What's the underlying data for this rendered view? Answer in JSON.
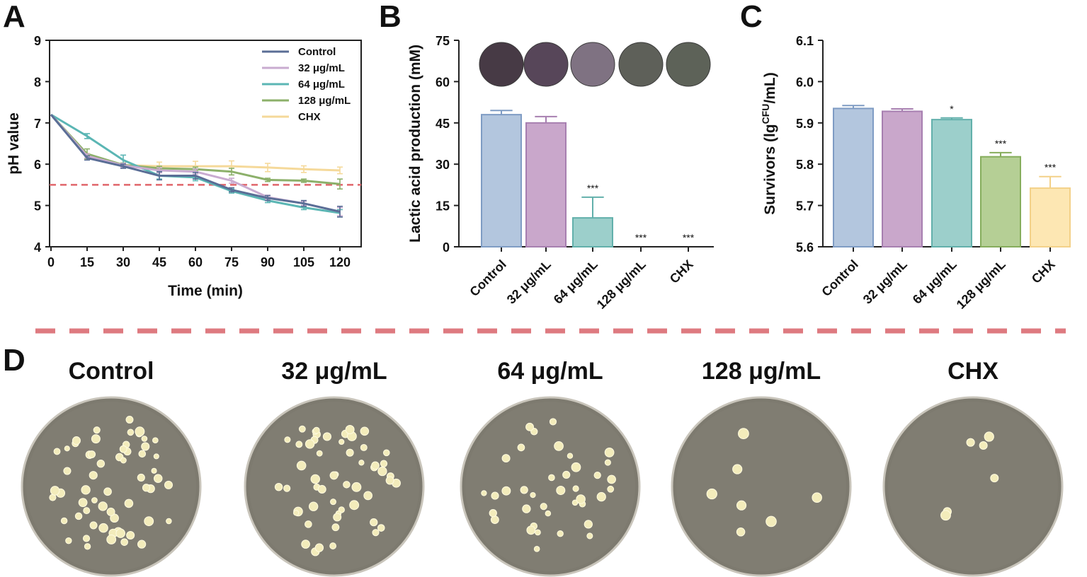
{
  "panels": {
    "a": "A",
    "b": "B",
    "c": "C",
    "d": "D"
  },
  "chart_data": [
    {
      "type": "line",
      "panel": "A",
      "xlabel": "Time (min)",
      "ylabel": "pH value",
      "x": [
        0,
        15,
        30,
        45,
        60,
        75,
        90,
        105,
        120
      ],
      "xticks": [
        "0",
        "15",
        "30",
        "45",
        "60",
        "75",
        "90",
        "105",
        "120"
      ],
      "ylim": [
        4,
        9
      ],
      "yticks": [
        "4",
        "5",
        "6",
        "7",
        "8",
        "9"
      ],
      "threshold": 5.5,
      "legend_position": "top-right",
      "series": [
        {
          "name": "Control",
          "color": "#5a6e96",
          "values": [
            7.2,
            6.15,
            5.95,
            5.72,
            5.72,
            5.38,
            5.18,
            5.05,
            4.85
          ],
          "errors": [
            0,
            0.05,
            0.05,
            0.1,
            0.08,
            0.05,
            0.06,
            0.07,
            0.13
          ]
        },
        {
          "name": "32 μg/mL",
          "color": "#c9abd0",
          "values": [
            7.2,
            6.2,
            5.97,
            5.85,
            5.82,
            5.6,
            5.2,
            5.05,
            4.85
          ],
          "errors": [
            0,
            0.05,
            0.05,
            0.06,
            0.06,
            0.06,
            0.05,
            0.05,
            0.1
          ]
        },
        {
          "name": "64 μg/mL",
          "color": "#5bb6b4",
          "values": [
            7.2,
            6.68,
            6.1,
            5.72,
            5.68,
            5.35,
            5.12,
            4.95,
            4.82
          ],
          "errors": [
            0,
            0.06,
            0.12,
            0.08,
            0.08,
            0.05,
            0.05,
            0.05,
            0.08
          ]
        },
        {
          "name": "128 μg/mL",
          "color": "#8cb06a",
          "values": [
            7.2,
            6.25,
            5.98,
            5.9,
            5.88,
            5.82,
            5.62,
            5.6,
            5.52
          ],
          "errors": [
            0,
            0.12,
            0.05,
            0.05,
            0.05,
            0.08,
            0.04,
            0.04,
            0.12
          ]
        },
        {
          "name": "CHX",
          "color": "#f5d99a",
          "values": [
            7.2,
            6.2,
            5.98,
            5.95,
            5.95,
            5.95,
            5.92,
            5.88,
            5.85
          ],
          "errors": [
            0,
            0.06,
            0.05,
            0.1,
            0.12,
            0.13,
            0.1,
            0.08,
            0.08
          ]
        }
      ]
    },
    {
      "type": "bar",
      "panel": "B",
      "ylabel": "Lactic acid production (mM)",
      "categories": [
        "Control",
        "32 μg/mL",
        "64 μg/mL",
        "128 μg/mL",
        "CHX"
      ],
      "values": [
        48,
        45,
        10.5,
        0,
        0
      ],
      "errors": [
        1.5,
        2.3,
        7.5,
        0,
        0
      ],
      "significance": [
        "",
        "",
        "***",
        "***",
        "***"
      ],
      "ylim": [
        0,
        75
      ],
      "yticks": [
        "0",
        "15",
        "30",
        "45",
        "60",
        "75"
      ],
      "colors": [
        "#b3c6de",
        "#c9a7cb",
        "#9ccfcb",
        "#cfd6c2",
        "#f5e2b8"
      ],
      "edge_colors": [
        "#7f9cc4",
        "#a77fb0",
        "#62b0ab",
        "#9bb27a",
        "#f0cd7d"
      ],
      "swatch_colors": [
        "#473a45",
        "#574659",
        "#7f7282",
        "#5e6059",
        "#5d6258"
      ]
    },
    {
      "type": "bar",
      "panel": "C",
      "ylabel": "Survivors (lg",
      "ylabel_sup": "CFU",
      "ylabel_end": "/mL)",
      "categories": [
        "Control",
        "32 μg/mL",
        "64 μg/mL",
        "128 μg/mL",
        "CHX"
      ],
      "values": [
        5.935,
        5.928,
        5.908,
        5.818,
        5.742
      ],
      "errors": [
        0.007,
        0.006,
        0.004,
        0.01,
        0.028
      ],
      "significance": [
        "",
        "",
        "*",
        "***",
        "***"
      ],
      "ylim": [
        5.6,
        6.1
      ],
      "yticks": [
        "5.6",
        "5.7",
        "5.8",
        "5.9",
        "6.0",
        "6.1"
      ],
      "colors": [
        "#b3c6de",
        "#c9a7cb",
        "#9ccfcb",
        "#b5cf95",
        "#fde7b3"
      ],
      "edge_colors": [
        "#7f9cc4",
        "#a77fb0",
        "#62b0ab",
        "#86ad5c",
        "#f3d189"
      ]
    }
  ],
  "plates": {
    "labels": [
      "Control",
      "32 μg/mL",
      "64 μg/mL",
      "128 μg/mL",
      "CHX"
    ],
    "colony_counts": [
      60,
      55,
      38,
      7,
      6
    ]
  }
}
